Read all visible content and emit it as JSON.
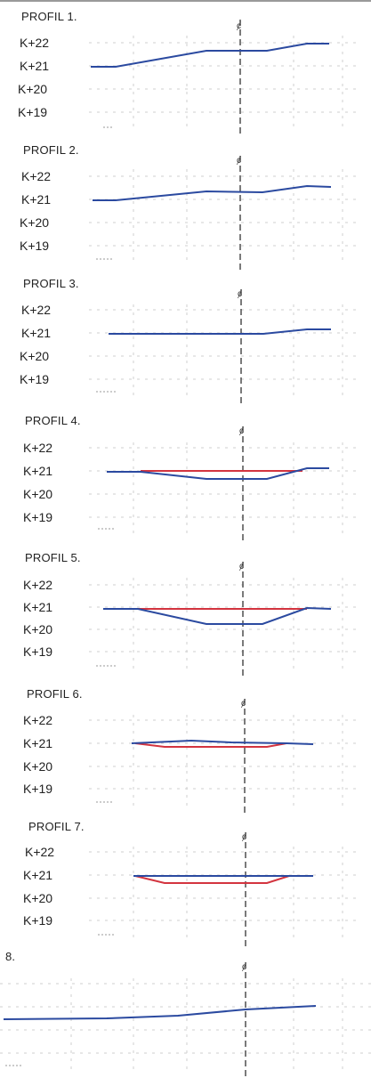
{
  "colors": {
    "terrain": "#2b4aa0",
    "design": "#d3343f",
    "grid": "#c8c8c8",
    "axis": "#333333"
  },
  "axis_symbol": "ȼ",
  "profiles": [
    {
      "title": "PROFIL 1.",
      "levels": [
        "K+22",
        "K+21",
        "K+20",
        "K+19"
      ]
    },
    {
      "title": "PROFIL 2.",
      "levels": [
        "K+22",
        "K+21",
        "K+20",
        "K+19"
      ]
    },
    {
      "title": "PROFIL 3.",
      "levels": [
        "K+22",
        "K+21",
        "K+20",
        "K+19"
      ]
    },
    {
      "title": "PROFIL 4.",
      "levels": [
        "K+22",
        "K+21",
        "K+20",
        "K+19"
      ]
    },
    {
      "title": "PROFIL 5.",
      "levels": [
        "K+22",
        "K+21",
        "K+20",
        "K+19"
      ]
    },
    {
      "title": "PROFIL 6.",
      "levels": [
        "K+22",
        "K+21",
        "K+20",
        "K+19"
      ]
    },
    {
      "title": "PROFIL 7.",
      "levels": [
        "K+22",
        "K+21",
        "K+20",
        "K+19"
      ]
    },
    {
      "title": "8.",
      "levels": []
    }
  ]
}
